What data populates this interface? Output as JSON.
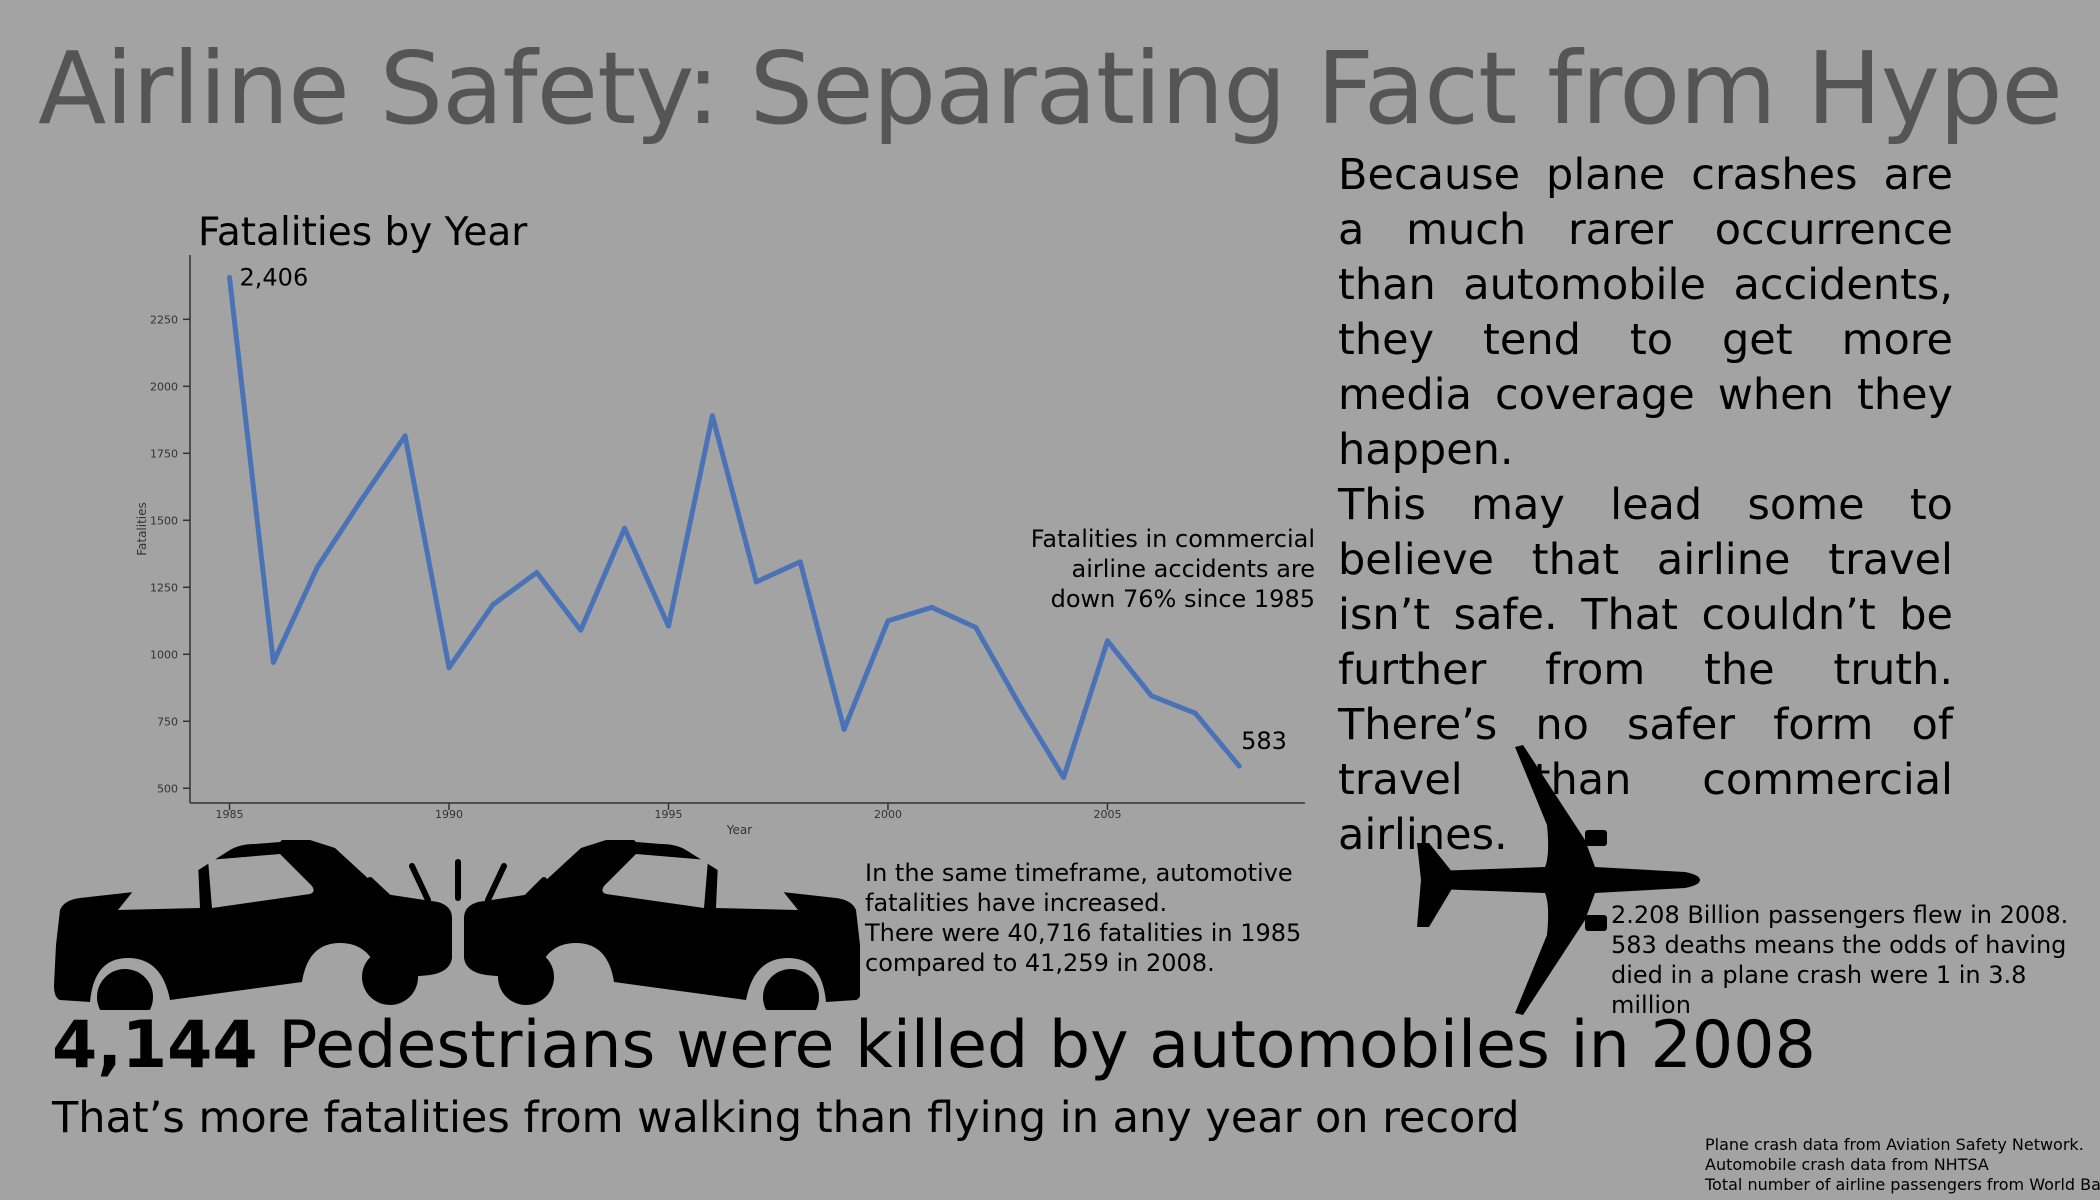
{
  "title": "Airline Safety: Separating Fact from Hype",
  "chart_data": {
    "type": "line",
    "title": "Fatalities by Year",
    "xlabel": "Year",
    "ylabel": "Fatalities",
    "x": [
      1985,
      1986,
      1987,
      1988,
      1989,
      1990,
      1991,
      1992,
      1993,
      1994,
      1995,
      1996,
      1997,
      1998,
      1999,
      2000,
      2001,
      2002,
      2003,
      2004,
      2005,
      2006,
      2007,
      2008
    ],
    "values": [
      2406,
      970,
      1325,
      1575,
      1815,
      950,
      1185,
      1305,
      1090,
      1470,
      1105,
      1890,
      1270,
      1345,
      720,
      1125,
      1175,
      1100,
      810,
      540,
      1050,
      845,
      780,
      583
    ],
    "x_ticks": [
      1985,
      1990,
      1995,
      2000,
      2005
    ],
    "y_ticks": [
      500,
      750,
      1000,
      1250,
      1500,
      1750,
      2000,
      2250
    ],
    "xlim": [
      1984.1,
      2009.5
    ],
    "ylim": [
      445,
      2490
    ],
    "line_color": "#4a72b6",
    "grid": false,
    "point_labels": [
      {
        "x": 1985,
        "label": "2,406"
      },
      {
        "x": 2008,
        "label": "583"
      }
    ],
    "annotation": [
      "Fatalities in commercial",
      "airline accidents are",
      "down 76% since 1985"
    ]
  },
  "paragraphs": [
    "Because plane crashes are a much rarer occurrence than automobile accidents, they tend to get more media coverage when they happen.",
    "This may lead some to believe that airline travel isn’t safe. That couldn’t be further from the truth. There’s no safer form of travel than commercial airlines."
  ],
  "auto_note": {
    "line1": "In the same timeframe, automotive fatalities have increased.",
    "line2": "There were 40,716 fatalities in 1985 compared to 41,259 in 2008."
  },
  "plane_note": {
    "line1": "2.208 Billion passengers flew in 2008.",
    "line2": "583 deaths means the odds of having died in a plane crash were 1 in 3.8 million"
  },
  "headline": {
    "number": "4,144",
    "text": " Pedestrians were killed by automobiles in 2008"
  },
  "subline": "That’s more fatalities from walking than flying in any year on record",
  "sources": [
    "Plane crash data from Aviation Safety Network.",
    "Automobile crash data from NHTSA",
    "Total number of airline passengers from World Bank"
  ],
  "icons": {
    "cars": "car-crash-icon",
    "plane": "airplane-icon"
  }
}
